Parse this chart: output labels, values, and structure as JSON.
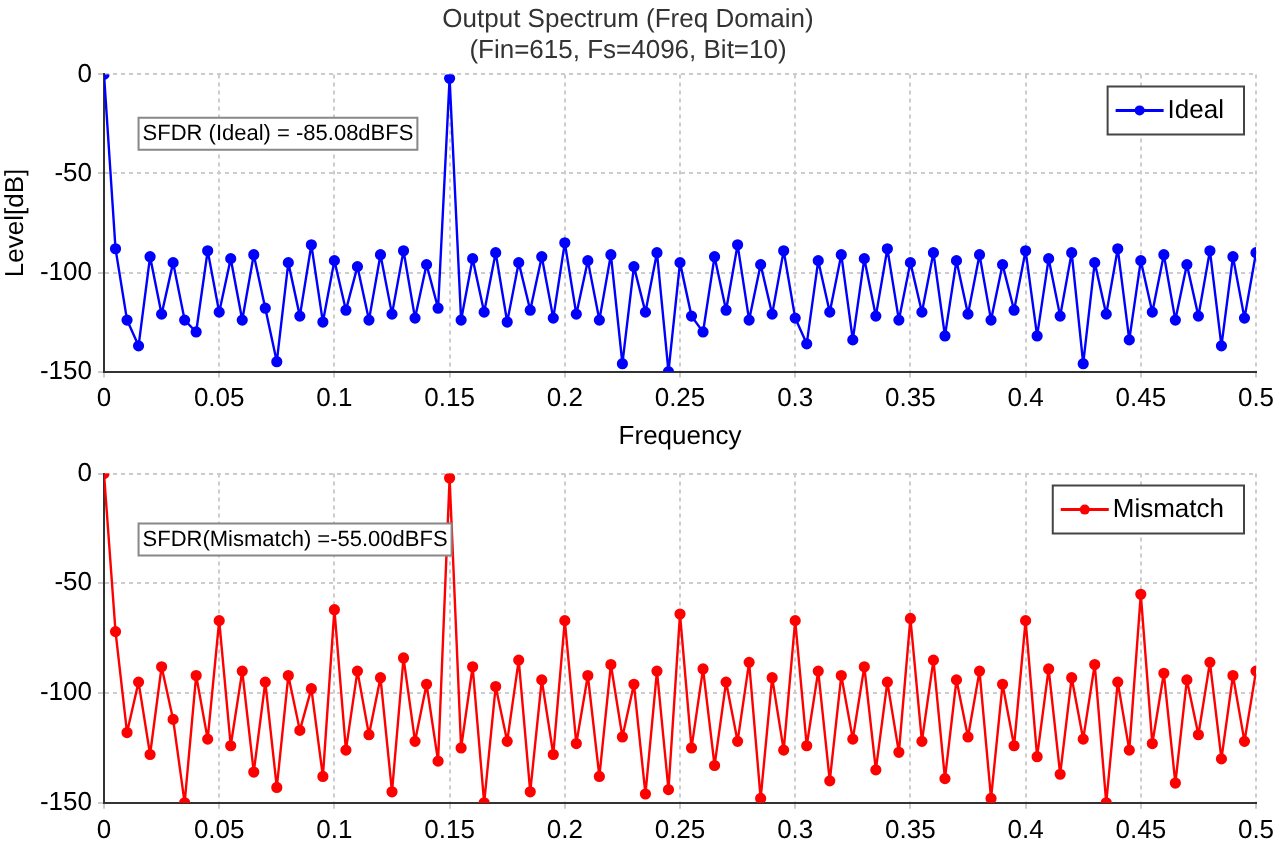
{
  "chart_data": [
    {
      "type": "line",
      "title": "Output Spectrum (Freq Domain)",
      "subtitle": "(Fin=615, Fs=4096, Bit=10)",
      "xlabel": "Frequency",
      "ylabel": "Level[dB]",
      "xlim": [
        0,
        0.5
      ],
      "xticks": [
        0,
        0.05,
        0.1,
        0.15,
        0.2,
        0.25,
        0.3,
        0.35,
        0.4,
        0.45,
        0.5
      ],
      "ylim": [
        -150,
        0
      ],
      "yticks": [
        -150,
        -100,
        -50,
        0
      ],
      "grid": true,
      "legend": "top right",
      "marker": "circle",
      "line_style": "solid",
      "annotations": [
        "SFDR (Ideal) = -85.08dBFS"
      ],
      "x": [
        0,
        0.005,
        0.01,
        0.015,
        0.02,
        0.025,
        0.03,
        0.035,
        0.04,
        0.045,
        0.05,
        0.055,
        0.06,
        0.065,
        0.07,
        0.075,
        0.08,
        0.085,
        0.09,
        0.095,
        0.1,
        0.105,
        0.11,
        0.115,
        0.12,
        0.125,
        0.13,
        0.135,
        0.14,
        0.145,
        0.15,
        0.155,
        0.16,
        0.165,
        0.17,
        0.175,
        0.18,
        0.185,
        0.19,
        0.195,
        0.2,
        0.205,
        0.21,
        0.215,
        0.22,
        0.225,
        0.23,
        0.235,
        0.24,
        0.245,
        0.25,
        0.255,
        0.26,
        0.265,
        0.27,
        0.275,
        0.28,
        0.285,
        0.29,
        0.295,
        0.3,
        0.305,
        0.31,
        0.315,
        0.32,
        0.325,
        0.33,
        0.335,
        0.34,
        0.345,
        0.35,
        0.355,
        0.36,
        0.365,
        0.37,
        0.375,
        0.38,
        0.385,
        0.39,
        0.395,
        0.4,
        0.405,
        0.41,
        0.415,
        0.42,
        0.425,
        0.43,
        0.435,
        0.44,
        0.445,
        0.45,
        0.455,
        0.46,
        0.465,
        0.47,
        0.475,
        0.48,
        0.485,
        0.49,
        0.495,
        0.5
      ],
      "series": [
        {
          "name": "Ideal",
          "color": "#0000ff",
          "values": [
            0,
            -88,
            -124,
            -137,
            -92,
            -121,
            -95,
            -124,
            -130,
            -89,
            -120,
            -93,
            -124,
            -91,
            -118,
            -145,
            -95,
            -122,
            -86,
            -125,
            -94,
            -119,
            -97,
            -124,
            -91,
            -121,
            -89,
            -123,
            -96,
            -118,
            -2,
            -124,
            -93,
            -120,
            -90,
            -125,
            -95,
            -119,
            -92,
            -123,
            -85,
            -121,
            -94,
            -124,
            -91,
            -146,
            -97,
            -120,
            -90,
            -150,
            -95,
            -122,
            -130,
            -92,
            -119,
            -86,
            -124,
            -96,
            -121,
            -89,
            -123,
            -136,
            -94,
            -120,
            -91,
            -134,
            -93,
            -122,
            -88,
            -124,
            -95,
            -120,
            -90,
            -132,
            -94,
            -121,
            -91,
            -124,
            -96,
            -119,
            -89,
            -132,
            -93,
            -122,
            -90,
            -146,
            -95,
            -121,
            -88,
            -134,
            -94,
            -120,
            -91,
            -124,
            -96,
            -122,
            -89,
            -137,
            -92,
            -123,
            -90
          ]
        }
      ]
    },
    {
      "type": "line",
      "xlim": [
        0,
        0.5
      ],
      "xticks": [
        0,
        0.05,
        0.1,
        0.15,
        0.2,
        0.25,
        0.3,
        0.35,
        0.4,
        0.45,
        0.5
      ],
      "ylim": [
        -150,
        0
      ],
      "yticks": [
        -150,
        -100,
        -50,
        0
      ],
      "grid": true,
      "legend": "top right",
      "marker": "circle",
      "line_style": "solid",
      "annotations": [
        "SFDR(Mismatch) =-55.00dBFS"
      ],
      "x": [
        0,
        0.005,
        0.01,
        0.015,
        0.02,
        0.025,
        0.03,
        0.035,
        0.04,
        0.045,
        0.05,
        0.055,
        0.06,
        0.065,
        0.07,
        0.075,
        0.08,
        0.085,
        0.09,
        0.095,
        0.1,
        0.105,
        0.11,
        0.115,
        0.12,
        0.125,
        0.13,
        0.135,
        0.14,
        0.145,
        0.15,
        0.155,
        0.16,
        0.165,
        0.17,
        0.175,
        0.18,
        0.185,
        0.19,
        0.195,
        0.2,
        0.205,
        0.21,
        0.215,
        0.22,
        0.225,
        0.23,
        0.235,
        0.24,
        0.245,
        0.25,
        0.255,
        0.26,
        0.265,
        0.27,
        0.275,
        0.28,
        0.285,
        0.29,
        0.295,
        0.3,
        0.305,
        0.31,
        0.315,
        0.32,
        0.325,
        0.33,
        0.335,
        0.34,
        0.345,
        0.35,
        0.355,
        0.36,
        0.365,
        0.37,
        0.375,
        0.38,
        0.385,
        0.39,
        0.395,
        0.4,
        0.405,
        0.41,
        0.415,
        0.42,
        0.425,
        0.43,
        0.435,
        0.44,
        0.445,
        0.45,
        0.455,
        0.46,
        0.465,
        0.47,
        0.475,
        0.48,
        0.485,
        0.49,
        0.495,
        0.5
      ],
      "series": [
        {
          "name": "Mismatch",
          "color": "#ff0000",
          "values": [
            0,
            -72,
            -118,
            -95,
            -128,
            -88,
            -112,
            -150,
            -92,
            -121,
            -67,
            -124,
            -90,
            -136,
            -95,
            -143,
            -92,
            -117,
            -98,
            -138,
            -62,
            -126,
            -90,
            -119,
            -93,
            -145,
            -84,
            -122,
            -96,
            -131,
            -2,
            -125,
            -88,
            -150,
            -97,
            -122,
            -85,
            -145,
            -94,
            -128,
            -67,
            -123,
            -92,
            -138,
            -87,
            -120,
            -96,
            -146,
            -90,
            -144,
            -64,
            -125,
            -89,
            -133,
            -95,
            -122,
            -86,
            -148,
            -93,
            -126,
            -67,
            -124,
            -90,
            -140,
            -92,
            -121,
            -88,
            -135,
            -95,
            -127,
            -66,
            -122,
            -85,
            -139,
            -94,
            -120,
            -90,
            -148,
            -96,
            -124,
            -67,
            -129,
            -89,
            -137,
            -93,
            -121,
            -87,
            -150,
            -95,
            -126,
            -55,
            -123,
            -91,
            -141,
            -94,
            -119,
            -86,
            -130,
            -92,
            -122,
            -90
          ]
        }
      ]
    }
  ]
}
